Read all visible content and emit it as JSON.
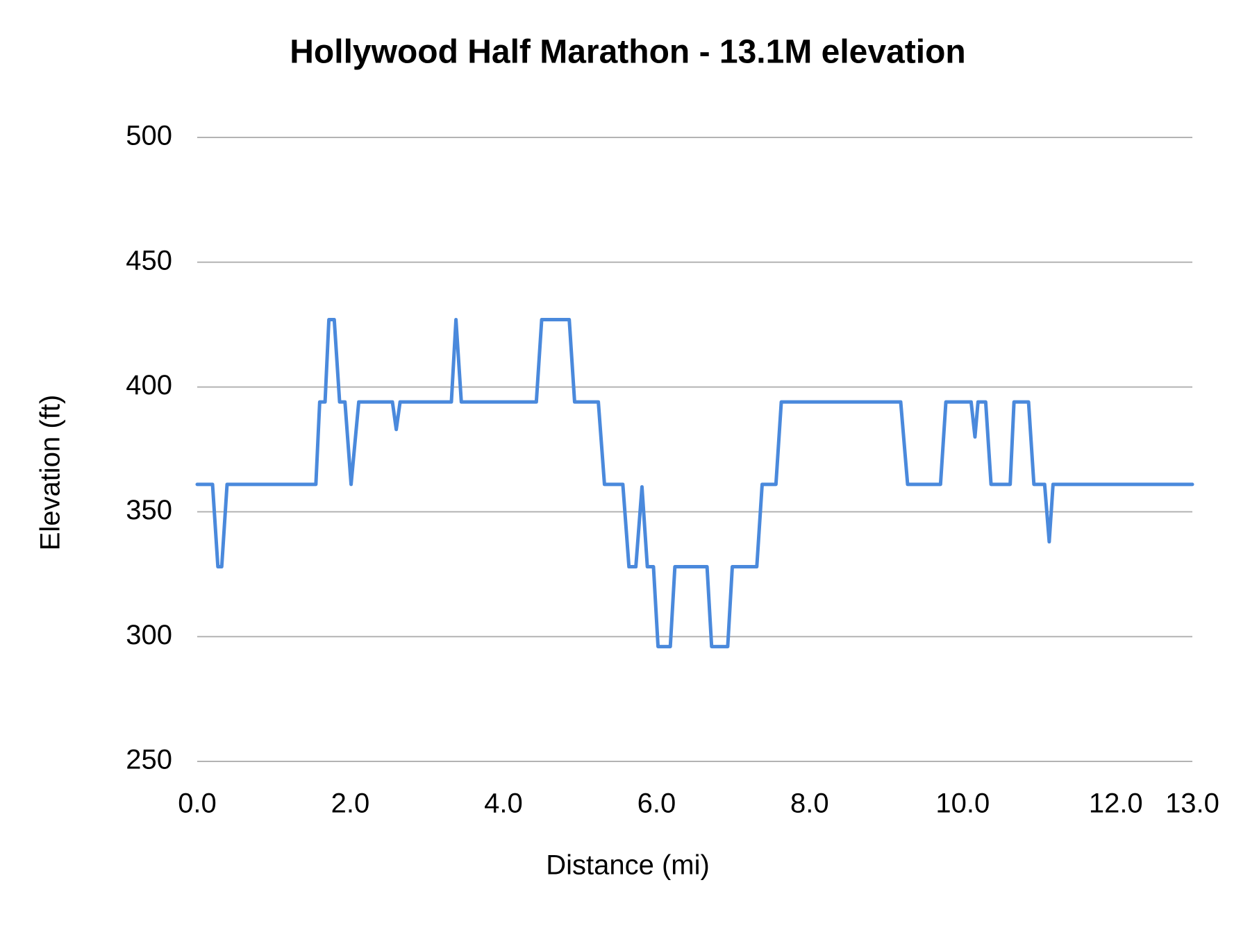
{
  "chart_data": {
    "type": "line",
    "title": "Hollywood Half Marathon - 13.1M elevation",
    "x_label": "Distance (mi)",
    "y_label": "Elevation (ft)",
    "series": [
      {
        "name": "Elevation",
        "color": "#4a89dc",
        "x": [
          0,
          0.2,
          0.27,
          0.32,
          0.39,
          1.55,
          1.6,
          1.67,
          1.72,
          1.79,
          1.86,
          1.93,
          2.01,
          2.11,
          2.55,
          2.6,
          2.65,
          3.32,
          3.38,
          3.45,
          4.43,
          4.5,
          4.86,
          4.93,
          5.24,
          5.32,
          5.56,
          5.64,
          5.73,
          5.81,
          5.88,
          5.96,
          6.02,
          6.18,
          6.24,
          6.66,
          6.72,
          6.93,
          6.99,
          7.31,
          7.38,
          7.56,
          7.63,
          9.19,
          9.28,
          9.71,
          9.78,
          10.11,
          10.16,
          10.2,
          10.3,
          10.37,
          10.62,
          10.67,
          10.86,
          10.93,
          11.07,
          11.13,
          11.18,
          13.0
        ],
        "values": [
          361,
          361,
          328,
          328,
          361,
          361,
          394,
          394,
          427,
          427,
          394,
          394,
          361,
          394,
          394,
          383,
          394,
          394,
          427,
          394,
          394,
          427,
          427,
          394,
          394,
          361,
          361,
          328,
          328,
          360,
          328,
          328,
          296,
          296,
          328,
          328,
          296,
          296,
          328,
          328,
          361,
          361,
          394,
          394,
          361,
          361,
          394,
          394,
          380,
          394,
          394,
          361,
          361,
          394,
          394,
          361,
          361,
          338,
          361,
          361
        ]
      }
    ],
    "xlim": [
      0,
      13
    ],
    "xticks": [
      {
        "value": 0,
        "label": "0.0"
      },
      {
        "value": 2,
        "label": "2.0"
      },
      {
        "value": 4,
        "label": "4.0"
      },
      {
        "value": 6,
        "label": "6.0"
      },
      {
        "value": 8,
        "label": "8.0"
      },
      {
        "value": 10,
        "label": "10.0"
      },
      {
        "value": 12,
        "label": "12.0"
      },
      {
        "value": 13,
        "label": "13.0"
      }
    ],
    "ylim": [
      250,
      500
    ],
    "yticks": [
      250,
      300,
      350,
      400,
      450,
      500
    ],
    "grid": true
  }
}
